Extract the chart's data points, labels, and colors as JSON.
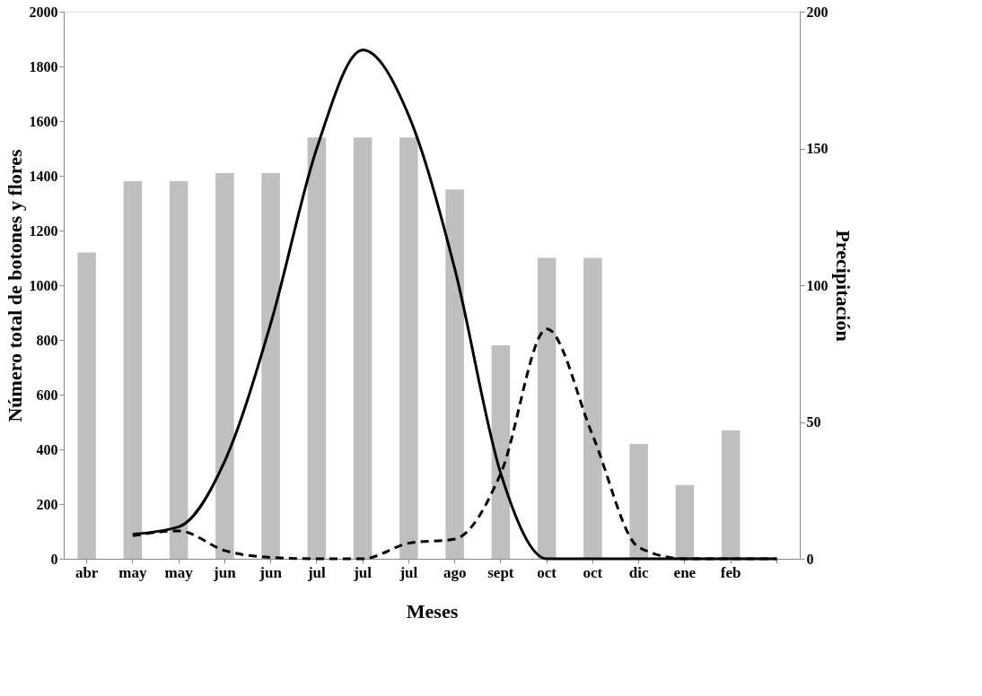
{
  "chart_data": {
    "type": "bar",
    "xlabel": "Meses",
    "ylabel": "Número total de botones y flores",
    "y2label": "Precipitación",
    "categories": [
      "abr",
      "may",
      "may",
      "jun",
      "jun",
      "jul",
      "jul",
      "jul",
      "ago",
      "sept",
      "oct",
      "oct",
      "dic",
      "ene",
      "feb",
      null
    ],
    "series": [
      {
        "type": "bar",
        "axis": "y2",
        "color": "#bfbfbf",
        "values": [
          112,
          138,
          138,
          141,
          141,
          154,
          154,
          154,
          135,
          78,
          110,
          110,
          42,
          27,
          47,
          null
        ]
      },
      {
        "type": "line",
        "color": "#000000",
        "line_style": "solid",
        "values": [
          null,
          90,
          117,
          357,
          860,
          1500,
          1860,
          1620,
          1060,
          312,
          0,
          0,
          0,
          0,
          0,
          0
        ]
      },
      {
        "type": "line",
        "color": "#000000",
        "line_style": "dashed",
        "values": [
          null,
          84,
          102,
          30,
          5,
          0,
          0,
          57,
          72,
          312,
          840,
          450,
          42,
          0,
          0,
          0
        ]
      }
    ],
    "ylim": [
      0,
      2000
    ],
    "yticks": [
      0,
      200,
      400,
      600,
      800,
      1000,
      1200,
      1400,
      1600,
      1800,
      2000
    ],
    "y2lim": [
      0,
      200
    ],
    "y2ticks": [
      0,
      50,
      100,
      150,
      200
    ],
    "grid": false,
    "marker": "none"
  }
}
